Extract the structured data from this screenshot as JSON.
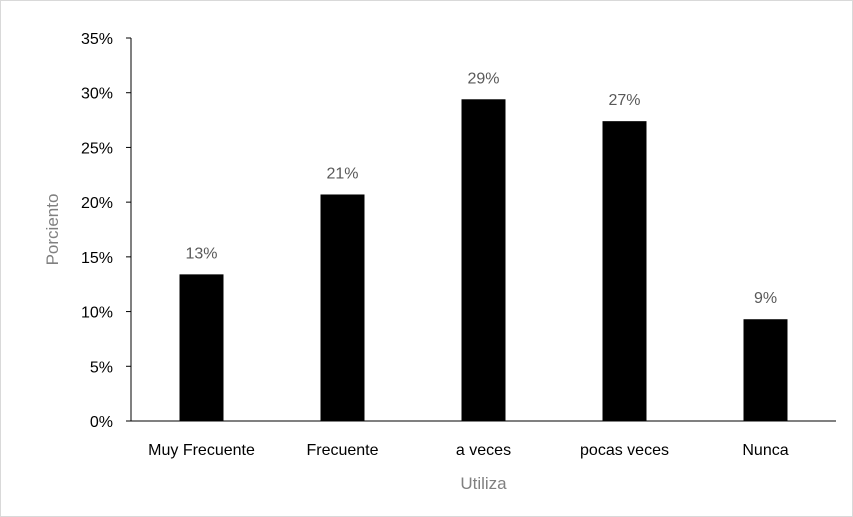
{
  "chart_data": {
    "type": "bar",
    "title": "",
    "xlabel": "Utiliza",
    "ylabel": "Porciento",
    "categories": [
      "Muy Frecuente",
      "Frecuente",
      "a veces",
      "pocas veces",
      "Nunca"
    ],
    "values": [
      0.134,
      0.207,
      0.294,
      0.274,
      0.093
    ],
    "data_labels": [
      "13%",
      "21%",
      "29%",
      "27%",
      "9%"
    ],
    "y_ticks": [
      0,
      0.05,
      0.1,
      0.15,
      0.2,
      0.25,
      0.3,
      0.35
    ],
    "y_tick_labels": [
      "0%",
      "5%",
      "10%",
      "15%",
      "20%",
      "25%",
      "30%",
      "35%"
    ],
    "ylim": [
      0,
      0.35
    ],
    "grid": false,
    "legend": "none",
    "bar_color": "#000000"
  }
}
